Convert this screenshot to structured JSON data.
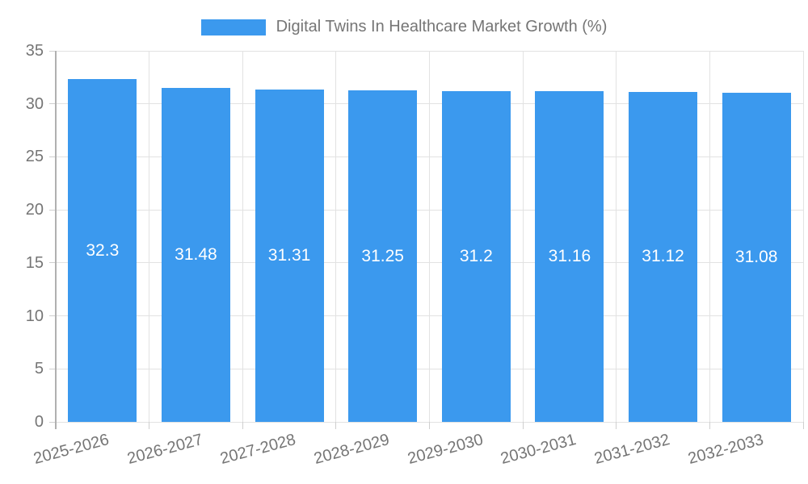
{
  "legend": {
    "label": "Digital Twins In Healthcare Market Growth (%)"
  },
  "colors": {
    "bar": "#3b99ee",
    "grid": "#e2e2e2",
    "axis": "#b0b0b0",
    "tick": "#cfcfcf",
    "text": "#757575",
    "bar_label": "#ffffff",
    "background": "#ffffff"
  },
  "chart_data": {
    "type": "bar",
    "title": "Digital Twins In Healthcare Market Growth (%)",
    "categories": [
      "2025-2026",
      "2026-2027",
      "2027-2028",
      "2028-2029",
      "2029-2030",
      "2030-2031",
      "2031-2032",
      "2032-2033"
    ],
    "values": [
      32.3,
      31.48,
      31.31,
      31.25,
      31.2,
      31.16,
      31.12,
      31.08
    ],
    "value_labels": [
      "32.3",
      "31.48",
      "31.31",
      "31.25",
      "31.2",
      "31.16",
      "31.12",
      "31.08"
    ],
    "xlabel": "",
    "ylabel": "",
    "ylim": [
      0,
      35
    ],
    "yticks": [
      0,
      5,
      10,
      15,
      20,
      25,
      30,
      35
    ],
    "grid": "on",
    "legend_position": "top-center",
    "x_tick_rotation_deg": -15,
    "bar_label_position": "center"
  }
}
